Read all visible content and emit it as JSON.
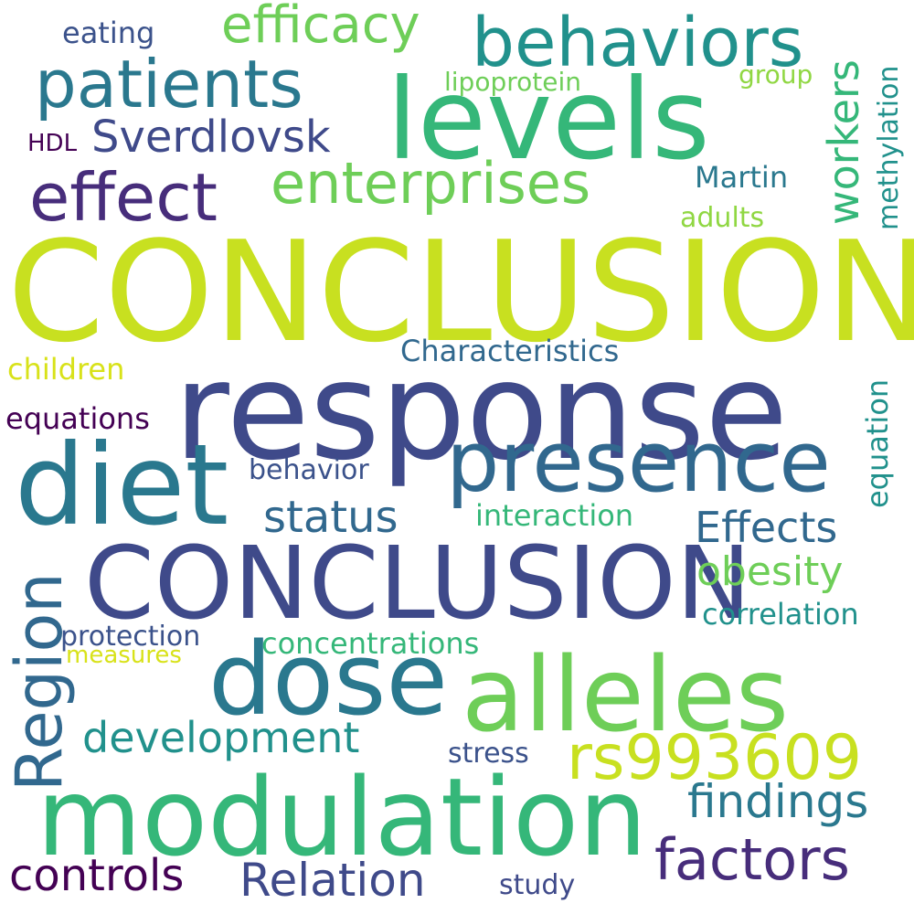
{
  "palette": {
    "lime": "#c8e020",
    "navy": "#3f4a8a",
    "teal": "#2a788e",
    "green": "#35b779",
    "light_green": "#6ece58",
    "purple": "#472d7b",
    "dark_purple": "#440154",
    "blue": "#31688e",
    "sea": "#21918c",
    "mint": "#90d743",
    "slate": "#3b528b",
    "yellow": "#d8e219"
  },
  "words": [
    {
      "text": "CONCLUSIONS",
      "color": "#c8e020"
    },
    {
      "text": "response",
      "color": "#3f4a8a"
    },
    {
      "text": "levels",
      "color": "#35b779"
    },
    {
      "text": "CONCLUSION",
      "color": "#3f4a8a"
    },
    {
      "text": "diet",
      "color": "#2a788e"
    },
    {
      "text": "modulation",
      "color": "#35b779"
    },
    {
      "text": "alleles",
      "color": "#6ece58"
    },
    {
      "text": "dose",
      "color": "#2a788e"
    },
    {
      "text": "presence",
      "color": "#31688e"
    },
    {
      "text": "behaviors",
      "color": "#21918c"
    },
    {
      "text": "patients",
      "color": "#2a788e"
    },
    {
      "text": "effect",
      "color": "#472d7b"
    },
    {
      "text": "enterprises",
      "color": "#6ece58"
    },
    {
      "text": "efficacy",
      "color": "#6ece58"
    },
    {
      "text": "Region",
      "color": "#31688e"
    },
    {
      "text": "rs993609",
      "color": "#c8e020"
    },
    {
      "text": "factors",
      "color": "#472d7b"
    },
    {
      "text": "Sverdlovsk",
      "color": "#3f4a8a"
    },
    {
      "text": "workers",
      "color": "#35b779"
    },
    {
      "text": "findings",
      "color": "#2a788e"
    },
    {
      "text": "Effects",
      "color": "#31688e"
    },
    {
      "text": "development",
      "color": "#21918c"
    },
    {
      "text": "controls",
      "color": "#440154"
    },
    {
      "text": "Relation",
      "color": "#3f4a8a"
    },
    {
      "text": "obesity",
      "color": "#6ece58"
    },
    {
      "text": "status",
      "color": "#31688e"
    },
    {
      "text": "methylation",
      "color": "#21918c"
    },
    {
      "text": "Characteristics",
      "color": "#31688e"
    },
    {
      "text": "equation",
      "color": "#21918c"
    },
    {
      "text": "correlation",
      "color": "#21918c"
    },
    {
      "text": "concentrations",
      "color": "#35b779"
    },
    {
      "text": "Martin",
      "color": "#2a788e"
    },
    {
      "text": "interaction",
      "color": "#35b779"
    },
    {
      "text": "behavior",
      "color": "#3b528b"
    },
    {
      "text": "protection",
      "color": "#3b528b"
    },
    {
      "text": "equations",
      "color": "#440154"
    },
    {
      "text": "children",
      "color": "#d8e219"
    },
    {
      "text": "stress",
      "color": "#3b528b"
    },
    {
      "text": "lipoprotein",
      "color": "#6ece58"
    },
    {
      "text": "eating",
      "color": "#3b528b"
    },
    {
      "text": "adults",
      "color": "#90d743"
    },
    {
      "text": "group",
      "color": "#90d743"
    },
    {
      "text": "study",
      "color": "#3f4a8a"
    },
    {
      "text": "HDL",
      "color": "#440154"
    },
    {
      "text": "measures",
      "color": "#d8e219"
    }
  ]
}
